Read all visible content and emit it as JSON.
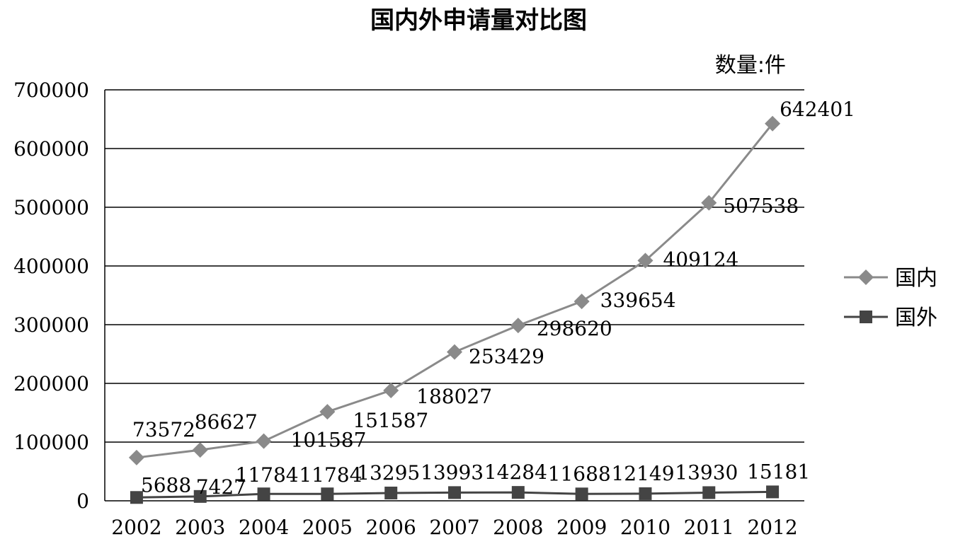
{
  "chart_data": {
    "type": "line",
    "title": "国内外申请量对比图",
    "unit_label": "数量:件",
    "categories": [
      "2002",
      "2003",
      "2004",
      "2005",
      "2006",
      "2007",
      "2008",
      "2009",
      "2010",
      "2011",
      "2012"
    ],
    "series": [
      {
        "name": "国内",
        "marker": "diamond",
        "color": "#8a8a8a",
        "values": [
          73572,
          86627,
          101587,
          151587,
          188027,
          253429,
          298620,
          339654,
          409124,
          507538,
          642401
        ],
        "labels": [
          "73572",
          "86627",
          "101587",
          "151587",
          "188027",
          "253429",
          "298620",
          "339654",
          "409124",
          "507538",
          "642401"
        ]
      },
      {
        "name": "国外",
        "marker": "square",
        "color": "#444444",
        "values": [
          5688,
          7427,
          11784,
          11784,
          13295,
          13993,
          14284,
          11688,
          12149,
          13930,
          15181
        ],
        "labels": [
          "5688",
          "7427",
          "11784",
          "11784",
          "13295",
          "13993",
          "14284",
          "11688",
          "12149",
          "13930",
          "15181"
        ]
      }
    ],
    "ylim": [
      0,
      700000
    ],
    "yticks": [
      "0",
      "100000",
      "200000",
      "300000",
      "400000",
      "500000",
      "600000",
      "700000"
    ],
    "grid": true,
    "legend_position": "right"
  }
}
